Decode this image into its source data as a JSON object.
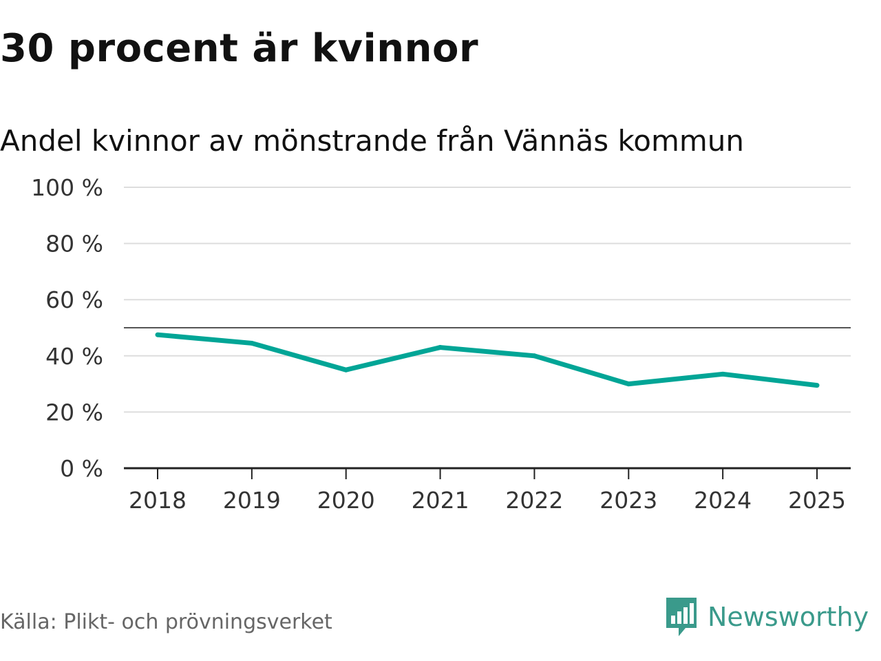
{
  "chart_data": {
    "type": "line",
    "title": "30 procent är kvinnor",
    "subtitle": "Andel kvinnor av mönstrande från Vännäs kommun",
    "x": [
      "2018",
      "2019",
      "2020",
      "2021",
      "2022",
      "2023",
      "2024",
      "2025"
    ],
    "series": [
      {
        "name": "Andel kvinnor",
        "values": [
          47.5,
          44.5,
          35,
          43,
          40,
          30,
          33.5,
          29.5
        ]
      }
    ],
    "y_ticks": [
      "0 %",
      "20 %",
      "40 %",
      "60 %",
      "80 %",
      "100 %"
    ],
    "y_tick_values": [
      0,
      20,
      40,
      60,
      80,
      100
    ],
    "ylim": [
      0,
      100
    ],
    "reference_line": 50,
    "grid": true,
    "xlabel": "",
    "ylabel": ""
  },
  "footer": {
    "source": "Källa: Plikt- och prövningsverket",
    "brand": "Newsworthy"
  },
  "colors": {
    "line": "#00a596",
    "brand": "#3a9a8b",
    "grid": "#dddddd",
    "reference": "#555555",
    "axis": "#222222"
  },
  "icons": {
    "logo": "speech-bubble-bar-chart-icon"
  }
}
